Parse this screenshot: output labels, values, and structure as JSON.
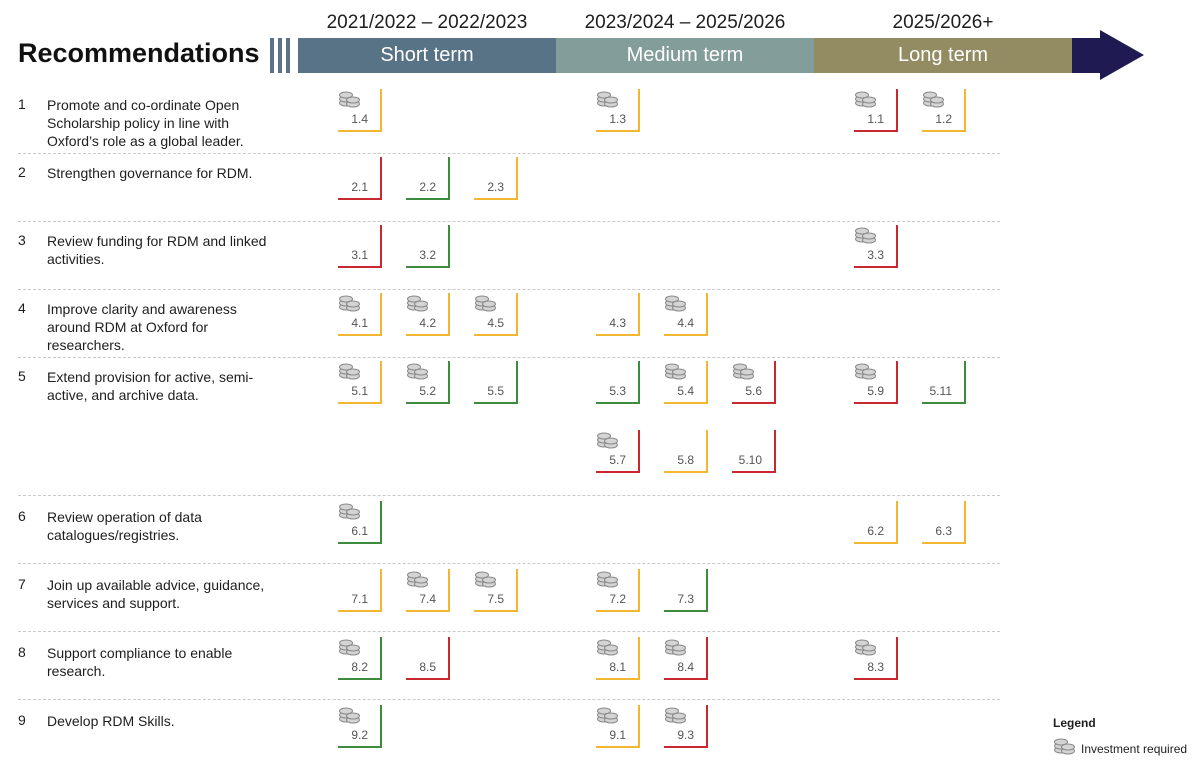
{
  "title": "Recommendations",
  "periods": [
    {
      "range": "2021/2022 – 2022/2023",
      "band": "Short term",
      "color": "#587385"
    },
    {
      "range": "2023/2024 – 2025/2026",
      "band": "Medium term",
      "color": "#839d9a"
    },
    {
      "range": "2025/2026+",
      "band": "Long term",
      "color": "#938c63"
    }
  ],
  "status_colors": {
    "amber": "#f2b632",
    "red": "#c9282f",
    "green": "#3d8c3d"
  },
  "arrow_color": "#1f1b52",
  "recommendations": [
    {
      "num": "1",
      "text": "Promote and co-ordinate Open Scholarship policy in line with Oxford’s role as a global leader.",
      "items": [
        {
          "id": "1.4",
          "status": "amber",
          "investment": true,
          "period": 0,
          "slot": 0,
          "line": 0
        },
        {
          "id": "1.3",
          "status": "amber",
          "investment": true,
          "period": 1,
          "slot": 0,
          "line": 0
        },
        {
          "id": "1.1",
          "status": "red",
          "investment": true,
          "period": 2,
          "slot": 0,
          "line": 0
        },
        {
          "id": "1.2",
          "status": "amber",
          "investment": true,
          "period": 2,
          "slot": 1,
          "line": 0
        }
      ]
    },
    {
      "num": "2",
      "text": "Strengthen governance for RDM.",
      "items": [
        {
          "id": "2.1",
          "status": "red",
          "investment": false,
          "period": 0,
          "slot": 0,
          "line": 0
        },
        {
          "id": "2.2",
          "status": "green",
          "investment": false,
          "period": 0,
          "slot": 1,
          "line": 0
        },
        {
          "id": "2.3",
          "status": "amber",
          "investment": false,
          "period": 0,
          "slot": 2,
          "line": 0
        }
      ]
    },
    {
      "num": "3",
      "text": "Review funding for RDM and linked activities.",
      "items": [
        {
          "id": "3.1",
          "status": "red",
          "investment": false,
          "period": 0,
          "slot": 0,
          "line": 0
        },
        {
          "id": "3.2",
          "status": "green",
          "investment": false,
          "period": 0,
          "slot": 1,
          "line": 0
        },
        {
          "id": "3.3",
          "status": "red",
          "investment": true,
          "period": 2,
          "slot": 0,
          "line": 0
        }
      ]
    },
    {
      "num": "4",
      "text": "Improve clarity and awareness around RDM at Oxford for researchers.",
      "items": [
        {
          "id": "4.1",
          "status": "amber",
          "investment": true,
          "period": 0,
          "slot": 0,
          "line": 0
        },
        {
          "id": "4.2",
          "status": "amber",
          "investment": true,
          "period": 0,
          "slot": 1,
          "line": 0
        },
        {
          "id": "4.5",
          "status": "amber",
          "investment": true,
          "period": 0,
          "slot": 2,
          "line": 0
        },
        {
          "id": "4.3",
          "status": "amber",
          "investment": false,
          "period": 1,
          "slot": 0,
          "line": 0
        },
        {
          "id": "4.4",
          "status": "amber",
          "investment": true,
          "period": 1,
          "slot": 1,
          "line": 0
        }
      ]
    },
    {
      "num": "5",
      "text": "Extend provision for active, semi-active, and archive data.",
      "items": [
        {
          "id": "5.1",
          "status": "amber",
          "investment": true,
          "period": 0,
          "slot": 0,
          "line": 0
        },
        {
          "id": "5.2",
          "status": "green",
          "investment": true,
          "period": 0,
          "slot": 1,
          "line": 0
        },
        {
          "id": "5.5",
          "status": "green",
          "investment": false,
          "period": 0,
          "slot": 2,
          "line": 0
        },
        {
          "id": "5.3",
          "status": "green",
          "investment": false,
          "period": 1,
          "slot": 0,
          "line": 0
        },
        {
          "id": "5.4",
          "status": "amber",
          "investment": true,
          "period": 1,
          "slot": 1,
          "line": 0
        },
        {
          "id": "5.6",
          "status": "red",
          "investment": true,
          "period": 1,
          "slot": 2,
          "line": 0
        },
        {
          "id": "5.9",
          "status": "red",
          "investment": true,
          "period": 2,
          "slot": 0,
          "line": 0
        },
        {
          "id": "5.11",
          "status": "green",
          "investment": false,
          "period": 2,
          "slot": 1,
          "line": 0
        },
        {
          "id": "5.7",
          "status": "red",
          "investment": true,
          "period": 1,
          "slot": 0,
          "line": 1
        },
        {
          "id": "5.8",
          "status": "amber",
          "investment": false,
          "period": 1,
          "slot": 1,
          "line": 1
        },
        {
          "id": "5.10",
          "status": "red",
          "investment": false,
          "period": 1,
          "slot": 2,
          "line": 1
        }
      ]
    },
    {
      "num": "6",
      "text": "Review operation of data catalogues/registries.",
      "items": [
        {
          "id": "6.1",
          "status": "green",
          "investment": true,
          "period": 0,
          "slot": 0,
          "line": 0
        },
        {
          "id": "6.2",
          "status": "amber",
          "investment": false,
          "period": 2,
          "slot": 0,
          "line": 0
        },
        {
          "id": "6.3",
          "status": "amber",
          "investment": false,
          "period": 2,
          "slot": 1,
          "line": 0
        }
      ]
    },
    {
      "num": "7",
      "text": "Join up available advice, guidance, services and support.",
      "items": [
        {
          "id": "7.1",
          "status": "amber",
          "investment": false,
          "period": 0,
          "slot": 0,
          "line": 0
        },
        {
          "id": "7.4",
          "status": "amber",
          "investment": true,
          "period": 0,
          "slot": 1,
          "line": 0
        },
        {
          "id": "7.5",
          "status": "amber",
          "investment": true,
          "period": 0,
          "slot": 2,
          "line": 0
        },
        {
          "id": "7.2",
          "status": "amber",
          "investment": true,
          "period": 1,
          "slot": 0,
          "line": 0
        },
        {
          "id": "7.3",
          "status": "green",
          "investment": false,
          "period": 1,
          "slot": 1,
          "line": 0
        }
      ]
    },
    {
      "num": "8",
      "text": "Support compliance to enable research.",
      "items": [
        {
          "id": "8.2",
          "status": "green",
          "investment": true,
          "period": 0,
          "slot": 0,
          "line": 0
        },
        {
          "id": "8.5",
          "status": "red",
          "investment": false,
          "period": 0,
          "slot": 1,
          "line": 0
        },
        {
          "id": "8.1",
          "status": "amber",
          "investment": true,
          "period": 1,
          "slot": 0,
          "line": 0
        },
        {
          "id": "8.4",
          "status": "red",
          "investment": true,
          "period": 1,
          "slot": 1,
          "line": 0
        },
        {
          "id": "8.3",
          "status": "red",
          "investment": true,
          "period": 2,
          "slot": 0,
          "line": 0
        }
      ]
    },
    {
      "num": "9",
      "text": "Develop RDM Skills.",
      "items": [
        {
          "id": "9.2",
          "status": "green",
          "investment": true,
          "period": 0,
          "slot": 0,
          "line": 0
        },
        {
          "id": "9.1",
          "status": "amber",
          "investment": true,
          "period": 1,
          "slot": 0,
          "line": 0
        },
        {
          "id": "9.3",
          "status": "red",
          "investment": true,
          "period": 1,
          "slot": 1,
          "line": 0
        }
      ]
    }
  ],
  "legend": {
    "title": "Legend",
    "investment_label": "Investment required",
    "icon": "coins-icon"
  }
}
